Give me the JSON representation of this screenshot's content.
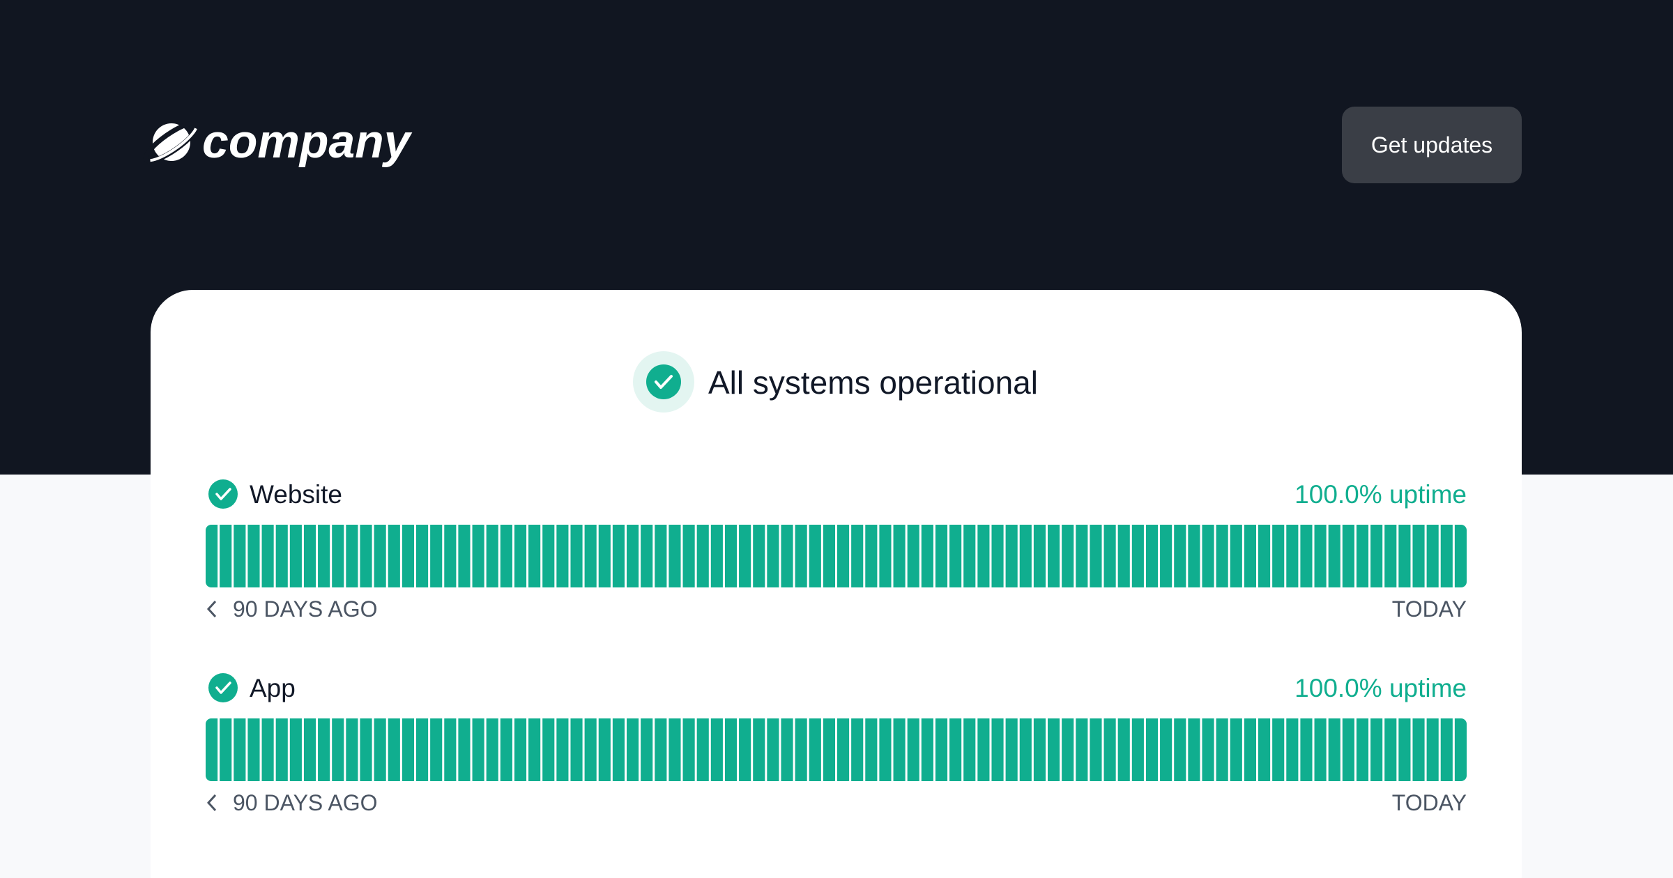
{
  "header": {
    "brand": "company",
    "button": "Get updates"
  },
  "status": {
    "title": "All systems operational"
  },
  "services": [
    {
      "name": "Website",
      "uptime": "100.0% uptime",
      "start_label": "90 DAYS AGO",
      "end_label": "TODAY"
    },
    {
      "name": "App",
      "uptime": "100.0% uptime",
      "start_label": "90 DAYS AGO",
      "end_label": "TODAY"
    }
  ]
}
